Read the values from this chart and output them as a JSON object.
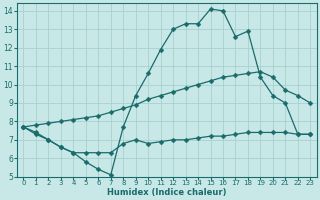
{
  "xlabel": "Humidex (Indice chaleur)",
  "bg_color": "#c8e8e8",
  "line_color": "#1a6b6b",
  "grid_color": "#a8d0d0",
  "xlim": [
    -0.5,
    23.5
  ],
  "ylim": [
    5,
    14.4
  ],
  "xticks": [
    0,
    1,
    2,
    3,
    4,
    5,
    6,
    7,
    8,
    9,
    10,
    11,
    12,
    13,
    14,
    15,
    16,
    17,
    18,
    19,
    20,
    21,
    22,
    23
  ],
  "yticks": [
    5,
    6,
    7,
    8,
    9,
    10,
    11,
    12,
    13,
    14
  ],
  "line1_x": [
    0,
    1,
    2,
    3,
    4,
    5,
    6,
    7,
    8,
    9,
    10,
    11,
    12,
    13,
    14,
    15,
    16,
    17,
    18,
    19,
    20,
    21,
    22,
    23
  ],
  "line1_y": [
    7.7,
    7.3,
    7.0,
    6.6,
    6.3,
    5.8,
    5.4,
    5.1,
    7.7,
    9.4,
    10.6,
    11.9,
    13.0,
    13.3,
    13.3,
    14.1,
    14.0,
    12.6,
    12.9,
    10.4,
    9.4,
    9.0,
    7.3,
    7.3
  ],
  "line2_x": [
    0,
    1,
    2,
    3,
    4,
    5,
    6,
    7,
    8,
    9,
    10,
    11,
    12,
    13,
    14,
    15,
    16,
    17,
    18,
    19,
    20,
    21,
    22,
    23
  ],
  "line2_y": [
    7.7,
    7.8,
    7.9,
    8.0,
    8.1,
    8.2,
    8.3,
    8.5,
    8.7,
    8.9,
    9.2,
    9.4,
    9.6,
    9.8,
    10.0,
    10.2,
    10.4,
    10.5,
    10.6,
    10.7,
    10.4,
    9.7,
    9.4,
    9.0
  ],
  "line3_x": [
    0,
    1,
    2,
    3,
    4,
    5,
    6,
    7,
    8,
    9,
    10,
    11,
    12,
    13,
    14,
    15,
    16,
    17,
    18,
    19,
    20,
    21,
    22,
    23
  ],
  "line3_y": [
    7.7,
    7.4,
    7.0,
    6.6,
    6.3,
    6.3,
    6.3,
    6.3,
    6.8,
    7.0,
    6.8,
    6.9,
    7.0,
    7.0,
    7.1,
    7.2,
    7.2,
    7.3,
    7.4,
    7.4,
    7.4,
    7.4,
    7.3,
    7.3
  ]
}
